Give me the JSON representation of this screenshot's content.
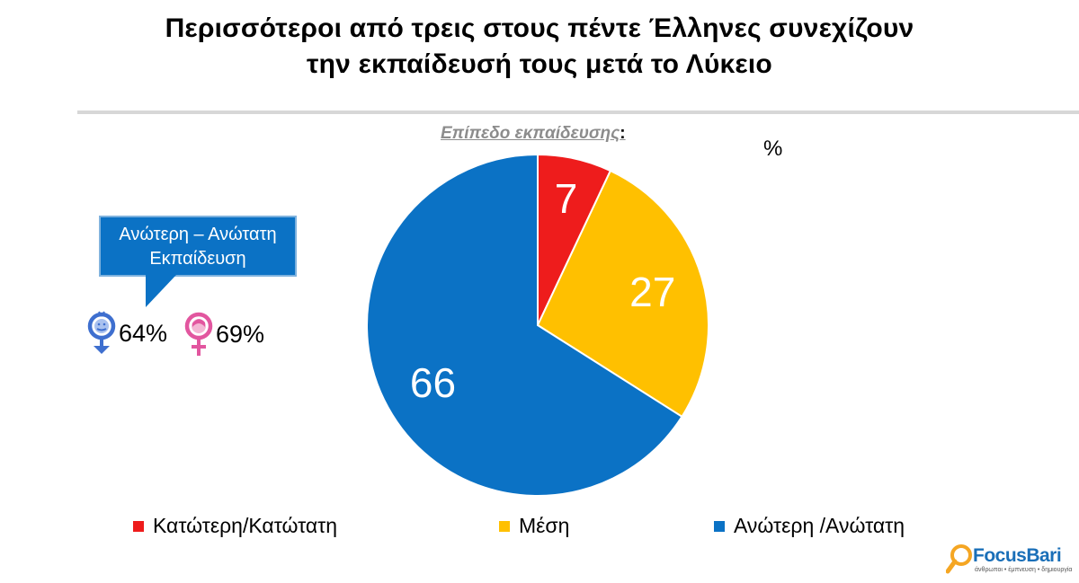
{
  "header": {
    "title_line1": "Περισσότεροι από τρεις στους πέντε Έλληνες συνεχίζουν",
    "title_line2": "την εκπαίδευσή τους μετά το Λύκειο"
  },
  "chart_data": {
    "type": "pie",
    "title": "Επίπεδο εκπαίδευσης",
    "title_suffix": ":",
    "unit": "%",
    "categories": [
      "Κατώτερη/Κατώτατη",
      "Μέση",
      "Ανώτερη /Ανώτατη"
    ],
    "values": [
      7,
      27,
      66
    ],
    "colors": [
      "#ee1c1c",
      "#ffc000",
      "#0b72c5"
    ],
    "label_color": "#ffffff",
    "legend_position": "bottom",
    "start_angle_deg": 0,
    "direction": "clockwise"
  },
  "callout": {
    "line1": "Ανώτερη – Ανώτατη",
    "line2": "Εκπαίδευση",
    "color": "#0b72c5"
  },
  "gender": {
    "male": {
      "icon": "male-symbol-icon",
      "value": "64%",
      "color": "#3e6fcf"
    },
    "female": {
      "icon": "female-symbol-icon",
      "value": "69%",
      "color": "#e2569f"
    }
  },
  "logo": {
    "name": "FocusBari",
    "tagline": "άνθρωποι • έμπνευση • δημιουργία"
  }
}
